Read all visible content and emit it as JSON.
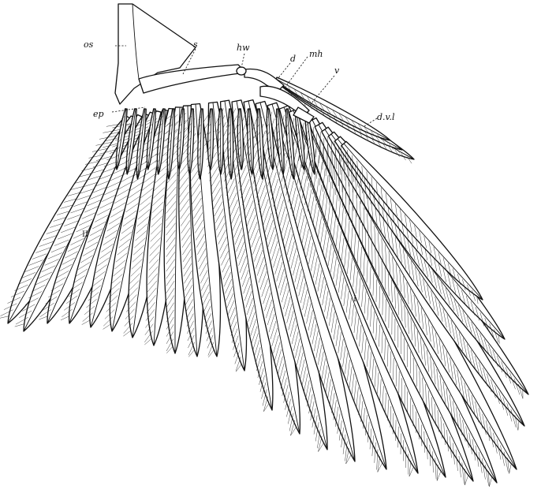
{
  "labels": {
    "os": "os",
    "s": "s",
    "hw": "hw",
    "d": "d",
    "mh": "mh",
    "v": "v",
    "ep": "ep",
    "dvl": "d.v.l",
    "secondaries": "II",
    "primaries": "I"
  },
  "colors": {
    "ink": "#111111",
    "paper": "#ffffff"
  }
}
